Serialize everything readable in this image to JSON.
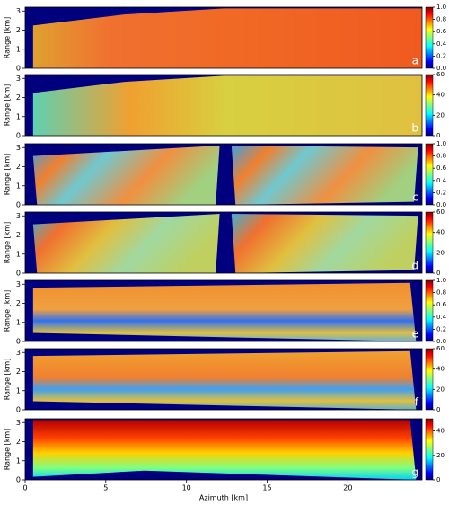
{
  "chart_data": [
    {
      "type": "heatmap",
      "label": "a",
      "ylabel": "Range [km]",
      "xlim": [
        0,
        24.6
      ],
      "ylim": [
        0,
        3.2
      ],
      "yticks": [
        0,
        1,
        2,
        3
      ],
      "clim": [
        0,
        1
      ],
      "cticks": [
        {
          "value": 0,
          "label": "0.0"
        },
        {
          "value": 0.2,
          "label": "0.2"
        },
        {
          "value": 0.4,
          "label": "0.4"
        },
        {
          "value": 0.6,
          "label": "0.6"
        },
        {
          "value": 0.8,
          "label": "0.8"
        },
        {
          "value": 1,
          "label": "1.0"
        }
      ],
      "colormap": "jet"
    },
    {
      "type": "heatmap",
      "label": "b",
      "ylabel": "Range [km]",
      "xlim": [
        0,
        24.6
      ],
      "ylim": [
        0,
        3.2
      ],
      "yticks": [
        0,
        1,
        2,
        3
      ],
      "clim": [
        0,
        60
      ],
      "cticks": [
        0,
        20,
        40,
        60
      ],
      "colormap": "jet"
    },
    {
      "type": "heatmap",
      "label": "c",
      "ylabel": "Range [km]",
      "xlim": [
        0,
        24.6
      ],
      "ylim": [
        0,
        3.2
      ],
      "yticks": [
        0,
        1,
        2,
        3
      ],
      "clim": [
        0,
        1
      ],
      "cticks": [
        {
          "value": 0,
          "label": "0.0"
        },
        {
          "value": 0.2,
          "label": "0.2"
        },
        {
          "value": 0.4,
          "label": "0.4"
        },
        {
          "value": 0.6,
          "label": "0.6"
        },
        {
          "value": 0.8,
          "label": "0.8"
        },
        {
          "value": 1,
          "label": "1.0"
        }
      ],
      "colormap": "jet"
    },
    {
      "type": "heatmap",
      "label": "d",
      "ylabel": "Range [km]",
      "xlim": [
        0,
        24.6
      ],
      "ylim": [
        0,
        3.2
      ],
      "yticks": [
        0,
        1,
        2,
        3
      ],
      "clim": [
        0,
        60
      ],
      "cticks": [
        0,
        20,
        40,
        60
      ],
      "colormap": "jet"
    },
    {
      "type": "heatmap",
      "label": "e",
      "ylabel": "Range [km]",
      "xlim": [
        0,
        24.6
      ],
      "ylim": [
        0,
        3.2
      ],
      "yticks": [
        0,
        1,
        2,
        3
      ],
      "clim": [
        0,
        1
      ],
      "cticks": [
        {
          "value": 0,
          "label": "0.0"
        },
        {
          "value": 0.2,
          "label": "0.2"
        },
        {
          "value": 0.4,
          "label": "0.4"
        },
        {
          "value": 0.6,
          "label": "0.6"
        },
        {
          "value": 0.8,
          "label": "0.8"
        },
        {
          "value": 1,
          "label": "1.0"
        }
      ],
      "colormap": "jet"
    },
    {
      "type": "heatmap",
      "label": "f",
      "ylabel": "Range [km]",
      "xlim": [
        0,
        24.6
      ],
      "ylim": [
        0,
        3.2
      ],
      "yticks": [
        0,
        1,
        2,
        3
      ],
      "clim": [
        0,
        60
      ],
      "cticks": [
        0,
        20,
        40,
        60
      ],
      "colormap": "jet"
    },
    {
      "type": "heatmap",
      "label": "g",
      "ylabel": "Range [km]",
      "xlabel": "Azimuth [km]",
      "xlim": [
        0,
        24.6
      ],
      "ylim": [
        0,
        3.2
      ],
      "yticks": [
        0,
        1,
        2,
        3
      ],
      "xticks": [
        0,
        5,
        10,
        15,
        20
      ],
      "clim": [
        0,
        50
      ],
      "cticks": [
        0,
        20,
        40
      ],
      "colormap": "jet"
    }
  ]
}
